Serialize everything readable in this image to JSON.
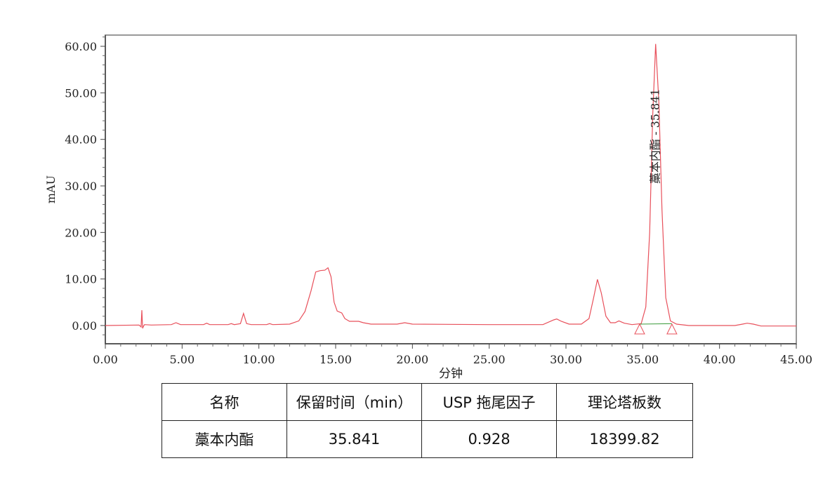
{
  "chart_data": {
    "type": "line",
    "title": "",
    "xlabel": "分钟",
    "ylabel": "mAU",
    "xlim": [
      0,
      45
    ],
    "ylim": [
      -4,
      62
    ],
    "x_ticks": [
      "0.00",
      "5.00",
      "10.00",
      "15.00",
      "20.00",
      "25.00",
      "30.00",
      "35.00",
      "40.00",
      "45.00"
    ],
    "y_ticks": [
      "0.00",
      "10.00",
      "20.00",
      "30.00",
      "40.00",
      "50.00",
      "60.00"
    ],
    "grid": false,
    "line_color": "#e8505b",
    "baseline_color": "#3a9a3a",
    "series": [
      {
        "x": [
          0,
          2.2,
          2.33,
          2.38,
          2.43,
          2.48,
          2.55,
          3.0,
          4.3,
          4.6,
          4.9,
          6.4,
          6.6,
          6.8,
          8.0,
          8.2,
          8.4,
          8.8,
          9.0,
          9.2,
          9.5,
          10.5,
          10.7,
          10.9,
          12.0,
          12.6,
          13.0,
          13.4,
          13.7,
          14.0,
          14.3,
          14.5,
          14.7,
          14.9,
          15.1,
          15.4,
          15.6,
          15.9,
          16.5,
          16.8,
          17.3,
          19.0,
          19.5,
          20.0,
          25,
          28.5,
          29.2,
          29.4,
          29.7,
          30.2,
          31.0,
          31.5,
          31.8,
          32.05,
          32.3,
          32.6,
          32.9,
          33.2,
          33.45,
          33.8,
          34.3,
          34.9,
          35.2,
          35.45,
          35.65,
          35.841,
          36.05,
          36.25,
          36.5,
          36.8,
          37.2,
          38,
          41.0,
          41.5,
          41.8,
          42.2,
          42.7,
          45
        ],
        "y": [
          0,
          0.1,
          -0.3,
          3.3,
          -0.6,
          -0.2,
          0.2,
          0.1,
          0.2,
          0.6,
          0.2,
          0.2,
          0.5,
          0.2,
          0.2,
          0.4,
          0.2,
          0.4,
          2.6,
          0.4,
          0.2,
          0.2,
          0.4,
          0.2,
          0.3,
          1.0,
          3.0,
          7.5,
          11.5,
          11.8,
          11.9,
          12.4,
          10.5,
          5.0,
          3.1,
          2.7,
          1.5,
          0.9,
          0.9,
          0.6,
          0.3,
          0.3,
          0.6,
          0.3,
          0.2,
          0.2,
          1.2,
          1.4,
          0.9,
          0.3,
          0.3,
          1.5,
          6.0,
          9.9,
          7.0,
          2.0,
          0.6,
          0.6,
          1.0,
          0.5,
          0.2,
          0.4,
          4.0,
          20.0,
          45.0,
          60.5,
          48.0,
          25.0,
          6.0,
          1.0,
          0.3,
          0.0,
          0.0,
          0.3,
          0.5,
          0.3,
          -0.1,
          -0.1
        ]
      }
    ],
    "peak_label": "藁本内酯 - 35.841",
    "integration_markers": [
      34.8,
      36.9
    ]
  },
  "table": {
    "headers": [
      "名称",
      "保留时间（min）",
      "USP 拖尾因子",
      "理论塔板数"
    ],
    "rows": [
      [
        "藁本内酯",
        "35.841",
        "0.928",
        "18399.82"
      ]
    ]
  }
}
